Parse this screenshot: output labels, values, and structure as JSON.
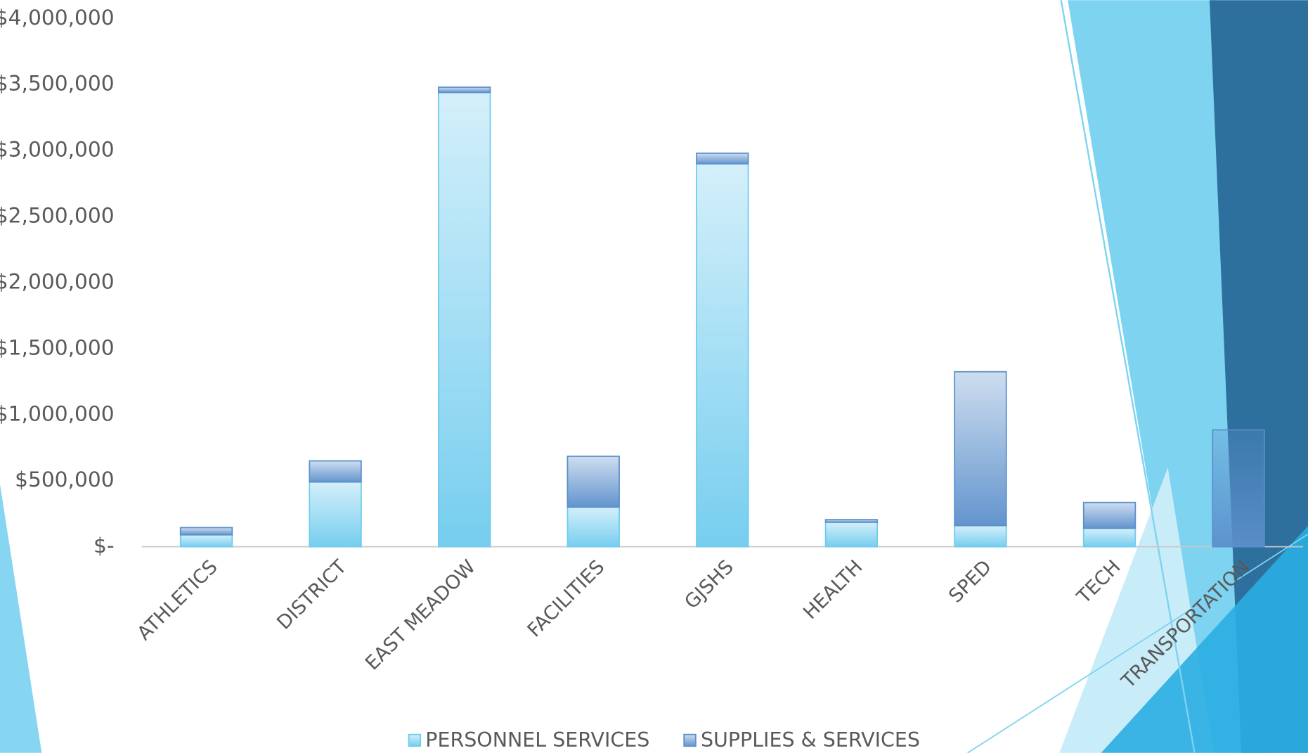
{
  "chart_data": {
    "type": "stacked_bar",
    "categories": [
      "ATHLETICS",
      "DISTRICT",
      "EAST MEADOW",
      "FACILITIES",
      "GJSHS",
      "HEALTH",
      "SPED",
      "TECH",
      "TRANSPORTATION"
    ],
    "series": [
      {
        "name": "PERSONNEL SERVICES",
        "color": "#6fcbee",
        "values": [
          90000,
          490000,
          3440000,
          300000,
          2900000,
          185000,
          160000,
          140000,
          0
        ]
      },
      {
        "name": "SUPPLIES & SERVICES",
        "color": "#5b8fcb",
        "values": [
          55000,
          160000,
          40000,
          385000,
          80000,
          20000,
          1165000,
          195000,
          885000
        ]
      }
    ],
    "ylim": [
      0,
      4000000
    ],
    "yticks": [
      {
        "value": 0,
        "label": "$-"
      },
      {
        "value": 500000,
        "label": "$500,000"
      },
      {
        "value": 1000000,
        "label": "$1,000,000"
      },
      {
        "value": 1500000,
        "label": "$1,500,000"
      },
      {
        "value": 2000000,
        "label": "$2,000,000"
      },
      {
        "value": 2500000,
        "label": "$2,500,000"
      },
      {
        "value": 3000000,
        "label": "$3,000,000"
      },
      {
        "value": 3500000,
        "label": "$3,500,000"
      },
      {
        "value": 4000000,
        "label": "$4,000,000"
      }
    ],
    "legend": "bottom"
  }
}
